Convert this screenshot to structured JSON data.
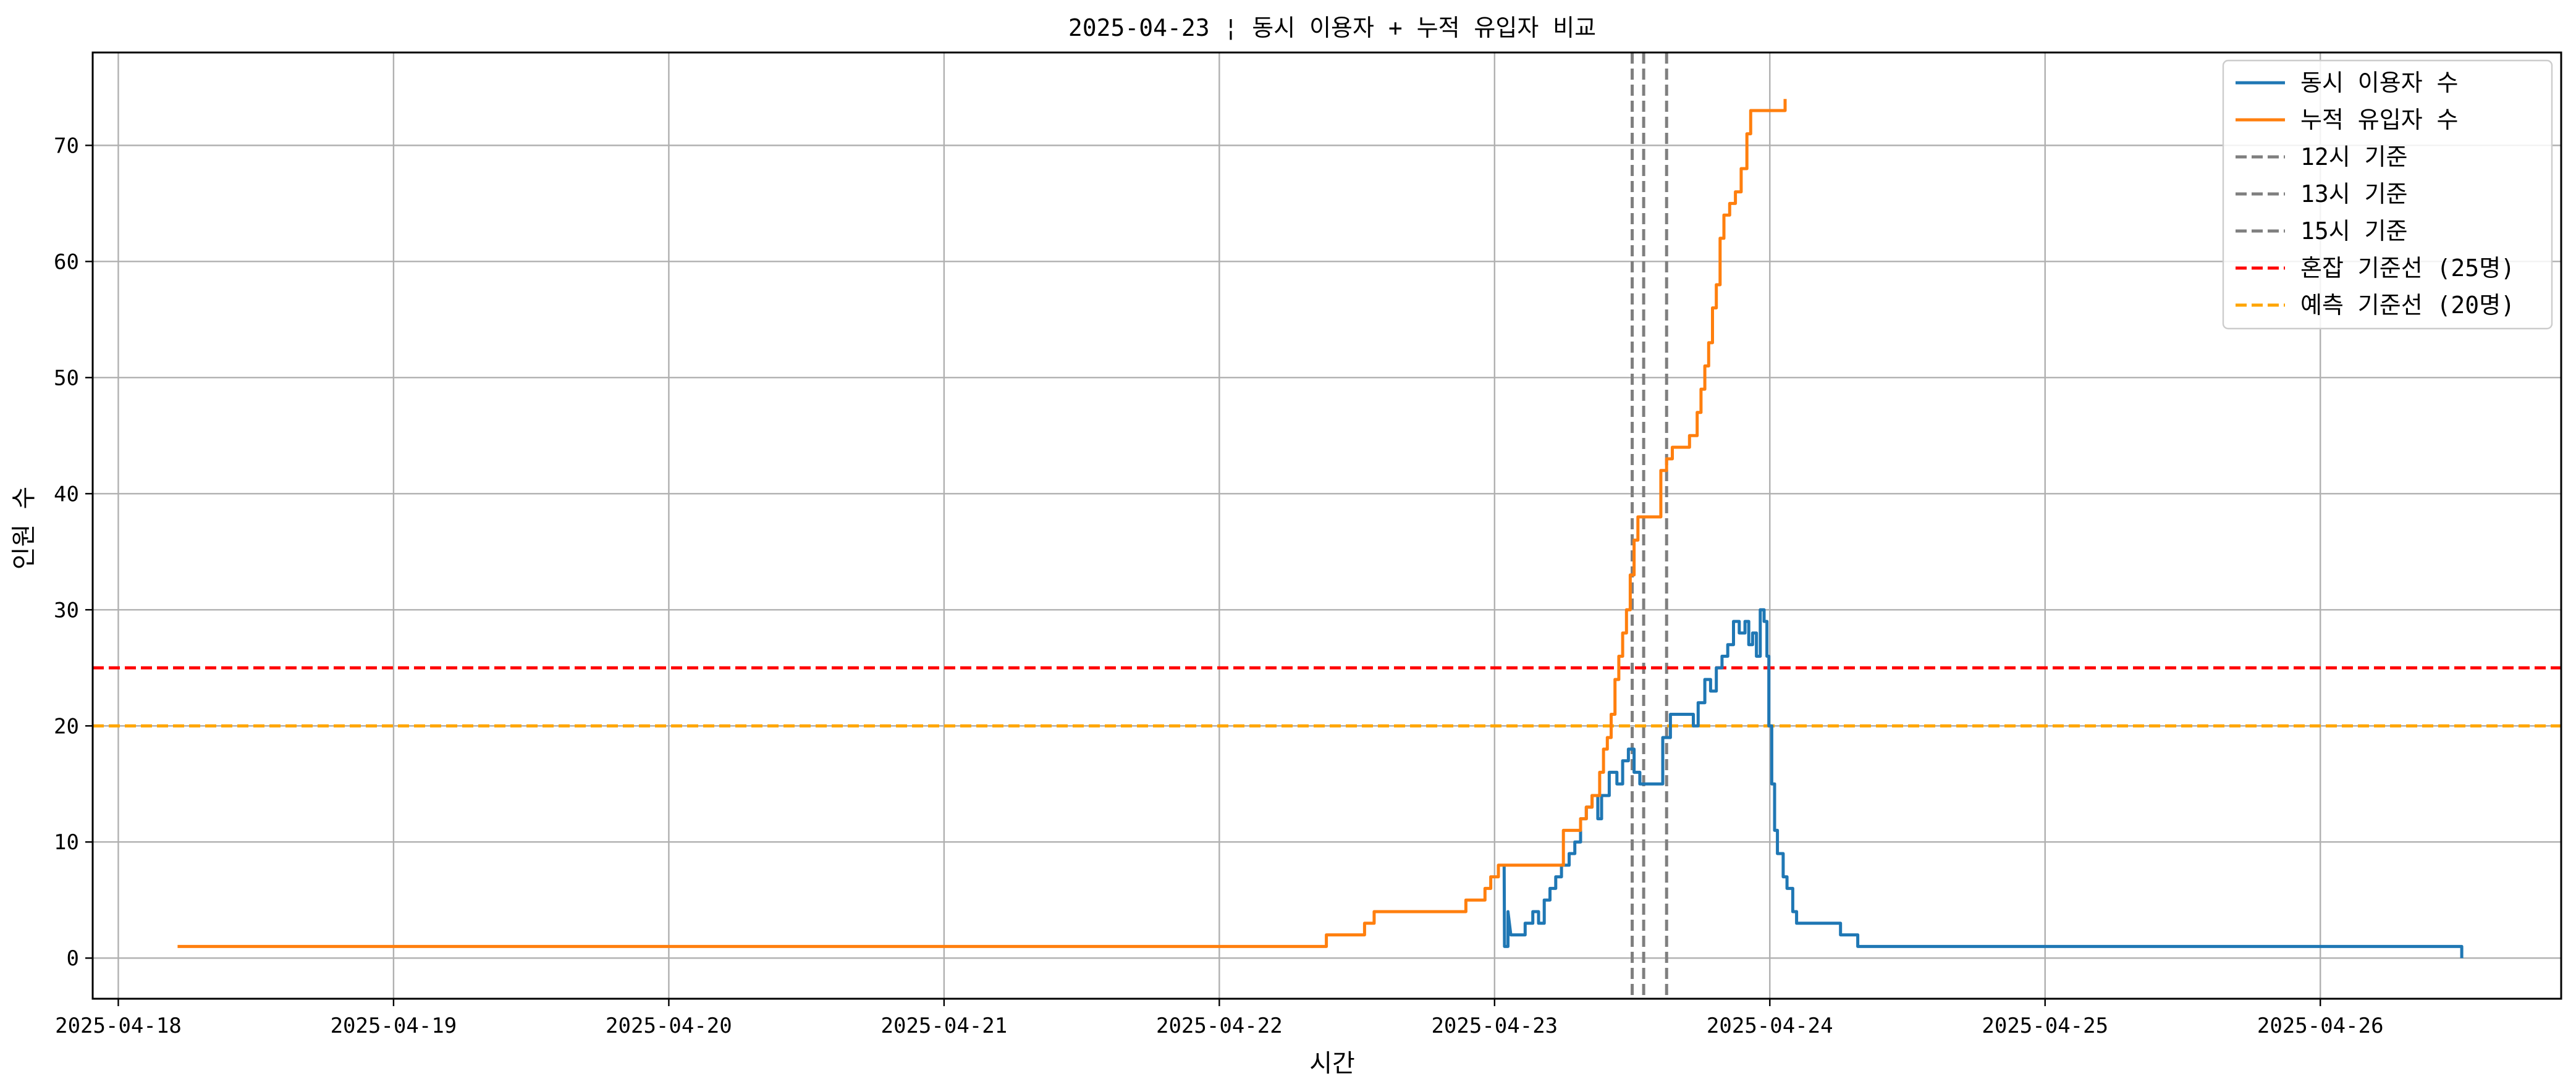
{
  "chart_data": {
    "type": "line",
    "title": "2025-04-23 ¦ 동시 이용자 + 누적 유입자 비교",
    "xlabel": "시간",
    "ylabel": "인원 수",
    "xlim": [
      "2025-04-17T21:46",
      "2025-04-26T21:00"
    ],
    "ylim": [
      -3.5,
      78
    ],
    "grid": true,
    "legend_position": "top-right",
    "x_ticks": [
      "2025-04-18",
      "2025-04-19",
      "2025-04-20",
      "2025-04-21",
      "2025-04-22",
      "2025-04-23",
      "2025-04-24",
      "2025-04-25",
      "2025-04-26"
    ],
    "y_ticks": [
      0,
      10,
      20,
      30,
      40,
      50,
      60,
      70
    ],
    "series": [
      {
        "name": "동시 이용자 수",
        "color": "#1f77b4",
        "style": "solid",
        "points": [
          [
            "2025-04-23T00:50",
            8
          ],
          [
            "2025-04-23T00:52",
            1
          ],
          [
            "2025-04-23T01:10",
            1
          ],
          [
            "2025-04-23T01:10",
            4
          ],
          [
            "2025-04-23T01:25",
            2
          ],
          [
            "2025-04-23T02:40",
            2
          ],
          [
            "2025-04-23T02:40",
            3
          ],
          [
            "2025-04-23T03:20",
            3
          ],
          [
            "2025-04-23T03:20",
            4
          ],
          [
            "2025-04-23T03:50",
            4
          ],
          [
            "2025-04-23T03:50",
            3
          ],
          [
            "2025-04-23T04:20",
            3
          ],
          [
            "2025-04-23T04:20",
            5
          ],
          [
            "2025-04-23T04:50",
            5
          ],
          [
            "2025-04-23T04:50",
            6
          ],
          [
            "2025-04-23T05:20",
            6
          ],
          [
            "2025-04-23T05:20",
            7
          ],
          [
            "2025-04-23T05:50",
            7
          ],
          [
            "2025-04-23T05:50",
            8
          ],
          [
            "2025-04-23T06:30",
            8
          ],
          [
            "2025-04-23T06:30",
            9
          ],
          [
            "2025-04-23T07:00",
            9
          ],
          [
            "2025-04-23T07:00",
            10
          ],
          [
            "2025-04-23T07:30",
            10
          ],
          [
            "2025-04-23T07:30",
            12
          ],
          [
            "2025-04-23T08:00",
            12
          ],
          [
            "2025-04-23T08:00",
            13
          ],
          [
            "2025-04-23T08:30",
            13
          ],
          [
            "2025-04-23T08:30",
            14
          ],
          [
            "2025-04-23T09:00",
            14
          ],
          [
            "2025-04-23T09:00",
            12
          ],
          [
            "2025-04-23T09:20",
            12
          ],
          [
            "2025-04-23T09:20",
            14
          ],
          [
            "2025-04-23T10:00",
            14
          ],
          [
            "2025-04-23T10:00",
            16
          ],
          [
            "2025-04-23T10:40",
            16
          ],
          [
            "2025-04-23T10:40",
            15
          ],
          [
            "2025-04-23T11:10",
            15
          ],
          [
            "2025-04-23T11:10",
            17
          ],
          [
            "2025-04-23T11:40",
            17
          ],
          [
            "2025-04-23T11:40",
            18
          ],
          [
            "2025-04-23T12:10",
            18
          ],
          [
            "2025-04-23T12:10",
            16
          ],
          [
            "2025-04-23T12:40",
            16
          ],
          [
            "2025-04-23T12:40",
            15
          ],
          [
            "2025-04-23T14:40",
            15
          ],
          [
            "2025-04-23T14:40",
            19
          ],
          [
            "2025-04-23T15:20",
            19
          ],
          [
            "2025-04-23T15:20",
            21
          ],
          [
            "2025-04-23T17:20",
            21
          ],
          [
            "2025-04-23T17:20",
            20
          ],
          [
            "2025-04-23T17:45",
            20
          ],
          [
            "2025-04-23T17:45",
            22
          ],
          [
            "2025-04-23T18:20",
            22
          ],
          [
            "2025-04-23T18:20",
            24
          ],
          [
            "2025-04-23T18:50",
            24
          ],
          [
            "2025-04-23T18:50",
            23
          ],
          [
            "2025-04-23T19:20",
            23
          ],
          [
            "2025-04-23T19:20",
            25
          ],
          [
            "2025-04-23T19:50",
            25
          ],
          [
            "2025-04-23T19:50",
            26
          ],
          [
            "2025-04-23T20:20",
            26
          ],
          [
            "2025-04-23T20:20",
            27
          ],
          [
            "2025-04-23T20:50",
            27
          ],
          [
            "2025-04-23T20:50",
            29
          ],
          [
            "2025-04-23T21:20",
            29
          ],
          [
            "2025-04-23T21:20",
            28
          ],
          [
            "2025-04-23T21:50",
            28
          ],
          [
            "2025-04-23T21:50",
            29
          ],
          [
            "2025-04-23T22:10",
            29
          ],
          [
            "2025-04-23T22:10",
            27
          ],
          [
            "2025-04-23T22:30",
            27
          ],
          [
            "2025-04-23T22:30",
            28
          ],
          [
            "2025-04-23T22:50",
            28
          ],
          [
            "2025-04-23T22:50",
            26
          ],
          [
            "2025-04-23T23:10",
            26
          ],
          [
            "2025-04-23T23:10",
            30
          ],
          [
            "2025-04-23T23:30",
            30
          ],
          [
            "2025-04-23T23:30",
            29
          ],
          [
            "2025-04-23T23:45",
            29
          ],
          [
            "2025-04-23T23:45",
            26
          ],
          [
            "2025-04-23T23:55",
            26
          ],
          [
            "2025-04-23T23:55",
            20
          ],
          [
            "2025-04-24T00:10",
            20
          ],
          [
            "2025-04-24T00:10",
            15
          ],
          [
            "2025-04-24T00:25",
            15
          ],
          [
            "2025-04-24T00:25",
            11
          ],
          [
            "2025-04-24T00:40",
            11
          ],
          [
            "2025-04-24T00:40",
            9
          ],
          [
            "2025-04-24T01:10",
            9
          ],
          [
            "2025-04-24T01:10",
            7
          ],
          [
            "2025-04-24T01:30",
            7
          ],
          [
            "2025-04-24T01:30",
            6
          ],
          [
            "2025-04-24T02:00",
            6
          ],
          [
            "2025-04-24T02:00",
            4
          ],
          [
            "2025-04-24T02:20",
            4
          ],
          [
            "2025-04-24T02:20",
            3
          ],
          [
            "2025-04-24T06:10",
            3
          ],
          [
            "2025-04-24T06:10",
            2
          ],
          [
            "2025-04-24T07:40",
            2
          ],
          [
            "2025-04-24T07:40",
            1
          ],
          [
            "2025-04-26T12:20",
            1
          ],
          [
            "2025-04-26T12:20",
            0
          ]
        ]
      },
      {
        "name": "누적 유입자 수",
        "color": "#ff7f0e",
        "style": "solid",
        "points": [
          [
            "2025-04-18T05:10",
            1
          ],
          [
            "2025-04-22T09:20",
            1
          ],
          [
            "2025-04-22T09:20",
            2
          ],
          [
            "2025-04-22T12:40",
            2
          ],
          [
            "2025-04-22T12:40",
            3
          ],
          [
            "2025-04-22T13:30",
            3
          ],
          [
            "2025-04-22T13:30",
            4
          ],
          [
            "2025-04-22T21:30",
            4
          ],
          [
            "2025-04-22T21:30",
            5
          ],
          [
            "2025-04-22T23:10",
            5
          ],
          [
            "2025-04-22T23:10",
            6
          ],
          [
            "2025-04-22T23:40",
            6
          ],
          [
            "2025-04-22T23:40",
            7
          ],
          [
            "2025-04-23T00:20",
            7
          ],
          [
            "2025-04-23T00:20",
            8
          ],
          [
            "2025-04-23T06:00",
            8
          ],
          [
            "2025-04-23T06:00",
            11
          ],
          [
            "2025-04-23T07:30",
            11
          ],
          [
            "2025-04-23T07:30",
            12
          ],
          [
            "2025-04-23T08:00",
            12
          ],
          [
            "2025-04-23T08:00",
            13
          ],
          [
            "2025-04-23T08:30",
            13
          ],
          [
            "2025-04-23T08:30",
            14
          ],
          [
            "2025-04-23T09:10",
            14
          ],
          [
            "2025-04-23T09:10",
            16
          ],
          [
            "2025-04-23T09:30",
            16
          ],
          [
            "2025-04-23T09:30",
            18
          ],
          [
            "2025-04-23T09:50",
            18
          ],
          [
            "2025-04-23T09:50",
            19
          ],
          [
            "2025-04-23T10:10",
            19
          ],
          [
            "2025-04-23T10:10",
            21
          ],
          [
            "2025-04-23T10:30",
            21
          ],
          [
            "2025-04-23T10:30",
            24
          ],
          [
            "2025-04-23T10:50",
            24
          ],
          [
            "2025-04-23T10:50",
            26
          ],
          [
            "2025-04-23T11:10",
            26
          ],
          [
            "2025-04-23T11:10",
            28
          ],
          [
            "2025-04-23T11:30",
            28
          ],
          [
            "2025-04-23T11:30",
            30
          ],
          [
            "2025-04-23T11:50",
            30
          ],
          [
            "2025-04-23T11:50",
            33
          ],
          [
            "2025-04-23T12:10",
            33
          ],
          [
            "2025-04-23T12:10",
            36
          ],
          [
            "2025-04-23T12:30",
            36
          ],
          [
            "2025-04-23T12:30",
            38
          ],
          [
            "2025-04-23T14:30",
            38
          ],
          [
            "2025-04-23T14:30",
            42
          ],
          [
            "2025-04-23T15:00",
            42
          ],
          [
            "2025-04-23T15:00",
            43
          ],
          [
            "2025-04-23T15:30",
            43
          ],
          [
            "2025-04-23T15:30",
            44
          ],
          [
            "2025-04-23T17:00",
            44
          ],
          [
            "2025-04-23T17:00",
            45
          ],
          [
            "2025-04-23T17:40",
            45
          ],
          [
            "2025-04-23T17:40",
            47
          ],
          [
            "2025-04-23T18:00",
            47
          ],
          [
            "2025-04-23T18:00",
            49
          ],
          [
            "2025-04-23T18:20",
            49
          ],
          [
            "2025-04-23T18:20",
            51
          ],
          [
            "2025-04-23T18:40",
            51
          ],
          [
            "2025-04-23T18:40",
            53
          ],
          [
            "2025-04-23T19:00",
            53
          ],
          [
            "2025-04-23T19:00",
            56
          ],
          [
            "2025-04-23T19:20",
            56
          ],
          [
            "2025-04-23T19:20",
            58
          ],
          [
            "2025-04-23T19:40",
            58
          ],
          [
            "2025-04-23T19:40",
            62
          ],
          [
            "2025-04-23T20:00",
            62
          ],
          [
            "2025-04-23T20:00",
            64
          ],
          [
            "2025-04-23T20:30",
            64
          ],
          [
            "2025-04-23T20:30",
            65
          ],
          [
            "2025-04-23T21:00",
            65
          ],
          [
            "2025-04-23T21:00",
            66
          ],
          [
            "2025-04-23T21:30",
            66
          ],
          [
            "2025-04-23T21:30",
            68
          ],
          [
            "2025-04-23T22:00",
            68
          ],
          [
            "2025-04-23T22:00",
            71
          ],
          [
            "2025-04-23T22:20",
            71
          ],
          [
            "2025-04-23T22:20",
            73
          ],
          [
            "2025-04-24T01:20",
            73
          ],
          [
            "2025-04-24T01:20",
            74
          ]
        ]
      }
    ],
    "reference_lines": [
      {
        "name": "12시 기준",
        "orientation": "vertical",
        "x": "2025-04-23T12:00",
        "color": "#7f7f7f",
        "style": "dashed"
      },
      {
        "name": "13시 기준",
        "orientation": "vertical",
        "x": "2025-04-23T13:00",
        "color": "#7f7f7f",
        "style": "dashed"
      },
      {
        "name": "15시 기준",
        "orientation": "vertical",
        "x": "2025-04-23T15:00",
        "color": "#7f7f7f",
        "style": "dashed"
      },
      {
        "name": "혼잡 기준선 (25명)",
        "orientation": "horizontal",
        "y": 25,
        "color": "#ff0000",
        "style": "dashed"
      },
      {
        "name": "예측 기준선 (20명)",
        "orientation": "horizontal",
        "y": 20,
        "color": "#ffa500",
        "style": "dashed"
      }
    ]
  }
}
